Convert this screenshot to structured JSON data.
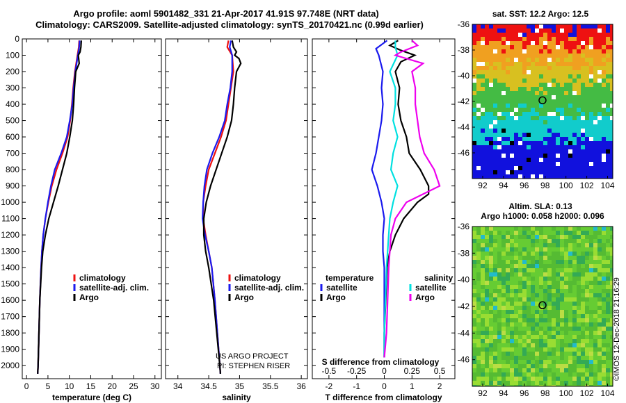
{
  "header": {
    "line1": "Argo profile: aoml 5901482_331 21-Apr-2017 41.91S 97.748E (NRT data)",
    "line2": "Climatology: CARS2009. Satellite-adjusted climatology: synTS_20170421.nc (0.99d earlier)"
  },
  "colors": {
    "climatology": "#ee1111",
    "satellite": "#1a1aee",
    "argo": "#000000",
    "sat_salinity": "#00e0e0",
    "argo_salinity": "#ee00ee"
  },
  "credits": {
    "line1": "US ARGO PROJECT",
    "line2": "PI: STEPHEN RISER",
    "imos": "©IMOS 12-Dec-2018 21:16:29"
  },
  "chart_data": [
    {
      "type": "line",
      "id": "temperature",
      "title": "",
      "xlabel": "temperature (deg C)",
      "ylabel": "",
      "xlim": [
        -1,
        31.5
      ],
      "ylim": [
        2080,
        0
      ],
      "xticks": [
        "0",
        "5",
        "10",
        "15",
        "20",
        "25",
        "30"
      ],
      "xtick_values": [
        0,
        5,
        10,
        15,
        20,
        25,
        30
      ],
      "yticks": [
        "0",
        "100",
        "200",
        "300",
        "400",
        "500",
        "600",
        "700",
        "800",
        "900",
        "1000",
        "1100",
        "1200",
        "1300",
        "1400",
        "1500",
        "1600",
        "1700",
        "1800",
        "1900",
        "2000"
      ],
      "ytick_values": [
        0,
        100,
        200,
        300,
        400,
        500,
        600,
        700,
        800,
        900,
        1000,
        1100,
        1200,
        1300,
        1400,
        1500,
        1600,
        1700,
        1800,
        1900,
        2000
      ],
      "legend": [
        "climatology",
        "satellite-adj. clim.",
        "Argo"
      ],
      "series": [
        {
          "name": "climatology",
          "color": "#ee1111",
          "depth": [
            10,
            50,
            100,
            200,
            300,
            400,
            500,
            600,
            700,
            800,
            900,
            1000,
            1100,
            1200,
            1300,
            1400,
            1600,
            1800,
            2000,
            2050
          ],
          "values": [
            12.3,
            12.2,
            11.9,
            11.3,
            10.9,
            10.6,
            10.2,
            9.6,
            8.4,
            7.0,
            5.9,
            5.1,
            4.4,
            3.9,
            3.6,
            3.4,
            3.1,
            2.9,
            2.7,
            2.6
          ]
        },
        {
          "name": "satellite-adj. clim.",
          "color": "#1a1aee",
          "depth": [
            10,
            50,
            100,
            200,
            300,
            400,
            500,
            600,
            700,
            800,
            900,
            1000,
            1100,
            1200,
            1300,
            1400,
            1600,
            1800,
            2000,
            2050
          ],
          "values": [
            12.4,
            12.3,
            12.0,
            11.4,
            11.0,
            10.7,
            10.1,
            9.4,
            8.1,
            6.6,
            5.7,
            5.0,
            4.4,
            3.9,
            3.6,
            3.4,
            3.1,
            2.9,
            2.7,
            2.6
          ]
        },
        {
          "name": "Argo",
          "color": "#000000",
          "depth": [
            10,
            50,
            80,
            100,
            150,
            200,
            300,
            400,
            500,
            600,
            700,
            800,
            900,
            1000,
            1100,
            1200,
            1300,
            1400,
            1600,
            1800,
            2000,
            2050
          ],
          "values": [
            12.8,
            12.7,
            12.5,
            12.1,
            12.3,
            11.5,
            11.2,
            11.0,
            10.7,
            10.1,
            9.4,
            8.4,
            7.4,
            6.3,
            5.2,
            4.4,
            3.8,
            3.5,
            3.1,
            2.9,
            2.7,
            2.6
          ]
        }
      ]
    },
    {
      "type": "line",
      "id": "salinity",
      "title": "",
      "xlabel": "salinity",
      "ylabel": "",
      "xlim": [
        33.8,
        36.1
      ],
      "ylim": [
        2080,
        0
      ],
      "xticks": [
        "34",
        "34.5",
        "35",
        "35.5",
        "36"
      ],
      "xtick_values": [
        34,
        34.5,
        35,
        35.5,
        36
      ],
      "legend": [
        "climatology",
        "satellite-adj. clim.",
        "Argo"
      ],
      "series": [
        {
          "name": "climatology",
          "color": "#ee1111",
          "depth": [
            10,
            50,
            100,
            200,
            300,
            400,
            500,
            600,
            700,
            800,
            900,
            1000,
            1100,
            1200,
            1300,
            1400,
            1600,
            1800,
            2000,
            2050
          ],
          "values": [
            34.82,
            34.8,
            34.88,
            34.9,
            34.86,
            34.82,
            34.78,
            34.7,
            34.6,
            34.5,
            34.45,
            34.41,
            34.41,
            34.45,
            34.5,
            34.55,
            34.6,
            34.64,
            34.68,
            34.69
          ]
        },
        {
          "name": "satellite-adj. clim.",
          "color": "#1a1aee",
          "depth": [
            10,
            50,
            100,
            200,
            300,
            400,
            500,
            600,
            700,
            800,
            900,
            1000,
            1100,
            1200,
            1300,
            1400,
            1600,
            1800,
            2000,
            2050
          ],
          "values": [
            34.86,
            34.84,
            34.88,
            34.88,
            34.85,
            34.8,
            34.76,
            34.67,
            34.56,
            34.47,
            34.43,
            34.41,
            34.4,
            34.44,
            34.5,
            34.55,
            34.6,
            34.64,
            34.68,
            34.69
          ]
        },
        {
          "name": "Argo",
          "color": "#000000",
          "depth": [
            10,
            50,
            80,
            100,
            120,
            150,
            200,
            300,
            400,
            500,
            600,
            700,
            800,
            900,
            1000,
            1100,
            1200,
            1300,
            1400,
            1600,
            1800,
            2000,
            2050
          ],
          "values": [
            34.88,
            34.9,
            34.95,
            34.92,
            34.99,
            35.02,
            34.95,
            34.92,
            34.9,
            34.87,
            34.8,
            34.71,
            34.62,
            34.53,
            34.46,
            34.42,
            34.42,
            34.45,
            34.5,
            34.58,
            34.63,
            34.68,
            34.69
          ]
        }
      ]
    },
    {
      "type": "line",
      "id": "difference",
      "title": "",
      "xlabel": "T difference from climatology",
      "xlabel_top": "S difference from climatology",
      "ylabel": "",
      "xlim": [
        -2.6,
        2.55
      ],
      "ylim": [
        2080,
        0
      ],
      "xticks": [
        "-2",
        "-1",
        "0",
        "1",
        "2"
      ],
      "xtick_values": [
        -2,
        -1,
        0,
        1,
        2
      ],
      "xticks_top": [
        "-0.5",
        "-0.25",
        "0",
        "0.25",
        "0.5"
      ],
      "xtick_values_top": [
        -0.5,
        -0.25,
        0,
        0.25,
        0.5
      ],
      "legend_left_title": "temperature",
      "legend_right_title": "salinity",
      "legend_left": [
        "satellite",
        "Argo"
      ],
      "legend_right": [
        "satellite",
        "Argo"
      ],
      "series": [
        {
          "name": "temperature satellite",
          "color": "#1a1aee",
          "depth": [
            10,
            60,
            100,
            200,
            300,
            400,
            500,
            600,
            700,
            800,
            900,
            1000,
            1100,
            1200,
            1300,
            1400,
            1600,
            1800,
            1950
          ],
          "values": [
            0.1,
            -0.3,
            -0.2,
            -0.05,
            -0.1,
            -0.05,
            -0.1,
            -0.2,
            -0.3,
            -0.45,
            -0.25,
            -0.1,
            0.0,
            -0.05,
            -0.05,
            0.0,
            0.0,
            0.0,
            0.0
          ]
        },
        {
          "name": "temperature Argo",
          "color": "#000000",
          "depth": [
            10,
            40,
            70,
            100,
            140,
            200,
            300,
            400,
            500,
            600,
            700,
            800,
            900,
            950,
            1000,
            1100,
            1200,
            1300,
            1400,
            1600,
            1800,
            1950
          ],
          "values": [
            0.5,
            0.2,
            0.6,
            1.1,
            0.6,
            0.4,
            0.55,
            0.5,
            0.6,
            0.8,
            0.9,
            1.3,
            1.6,
            1.6,
            1.2,
            0.7,
            0.4,
            0.2,
            0.1,
            0.05,
            0.0,
            0.0
          ]
        },
        {
          "name": "salinity satellite",
          "color": "#00e0e0",
          "depth": [
            10,
            50,
            100,
            200,
            300,
            400,
            500,
            600,
            700,
            800,
            900,
            1000,
            1100,
            1200,
            1400,
            1600,
            1800,
            1950
          ],
          "values": [
            0.1,
            0.1,
            0.12,
            0.05,
            0.1,
            0.1,
            0.08,
            0.12,
            0.08,
            0.06,
            0.12,
            0.08,
            0.05,
            0.04,
            0.02,
            0.01,
            0.0,
            0.0
          ]
        },
        {
          "name": "salinity Argo",
          "color": "#ee00ee",
          "depth": [
            10,
            40,
            80,
            100,
            150,
            200,
            300,
            400,
            500,
            600,
            700,
            800,
            900,
            1000,
            1100,
            1200,
            1400,
            1600,
            1800,
            1950
          ],
          "values": [
            0.25,
            0.3,
            0.15,
            0.1,
            0.35,
            0.25,
            0.28,
            0.28,
            0.3,
            0.32,
            0.36,
            0.45,
            0.5,
            0.2,
            0.1,
            0.06,
            0.04,
            0.03,
            0.02,
            0.0
          ]
        }
      ]
    },
    {
      "type": "heatmap",
      "id": "sst-map",
      "title": "sat. SST: 12.2 Argo: 12.5",
      "xlim": [
        91,
        104.5
      ],
      "ylim": [
        -48,
        -36
      ],
      "xticks": [
        "92",
        "94",
        "96",
        "98",
        "100",
        "102",
        "104"
      ],
      "xtick_values": [
        92,
        94,
        96,
        98,
        100,
        102,
        104
      ],
      "yticks": [
        "-36",
        "-38",
        "-40",
        "-42",
        "-44",
        "-46"
      ],
      "ytick_values": [
        -36,
        -38,
        -40,
        -42,
        -44,
        -46
      ],
      "marker": {
        "lon": 97.748,
        "lat": -41.91
      },
      "bands": [
        {
          "lat": [
            -36,
            -37.4
          ],
          "color": "#ee1111"
        },
        {
          "lat": [
            -37.4,
            -39.0
          ],
          "color": "#f0a020"
        },
        {
          "lat": [
            -39.0,
            -40.5
          ],
          "color": "#d8c020"
        },
        {
          "lat": [
            -40.5,
            -42.8
          ],
          "color": "#44bb44"
        },
        {
          "lat": [
            -42.8,
            -44.8
          ],
          "color": "#11cccc"
        },
        {
          "lat": [
            -44.8,
            -48
          ],
          "color": "#1111dd"
        }
      ]
    },
    {
      "type": "heatmap",
      "id": "sla-map",
      "title": "Altim. SLA: 0.13",
      "subtitle": "Argo h1000: 0.058 h2000: 0.096",
      "xlim": [
        91,
        104.5
      ],
      "ylim": [
        -48,
        -36
      ],
      "xticks": [
        "92",
        "94",
        "96",
        "98",
        "100",
        "102",
        "104"
      ],
      "xtick_values": [
        92,
        94,
        96,
        98,
        100,
        102,
        104
      ],
      "yticks": [
        "-36",
        "-38",
        "-40",
        "-42",
        "-44",
        "-46"
      ],
      "ytick_values": [
        -36,
        -38,
        -40,
        -42,
        -44,
        -46
      ],
      "marker": {
        "lon": 97.748,
        "lat": -41.91
      },
      "base_color": "#66cc33"
    }
  ]
}
